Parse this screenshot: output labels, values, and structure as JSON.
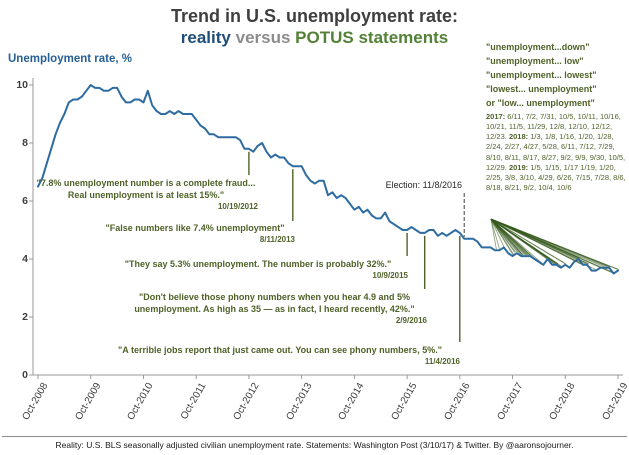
{
  "title": {
    "line1": "Trend in U.S. unemployment rate:",
    "reality": "reality",
    "versus": "versus",
    "potus": "POTUS statements"
  },
  "axis": {
    "y_label": "Unemployment rate, %",
    "y_ticks": [
      "10",
      "8",
      "6",
      "4",
      "2",
      "0"
    ],
    "x_ticks": [
      "Oct-2008",
      "Oct-2009",
      "Oct-2010",
      "Oct-2011",
      "Oct-2012",
      "Oct-2013",
      "Oct-2014",
      "Oct-2015",
      "Oct-2016",
      "Oct-2017",
      "Oct-2018",
      "Oct-2019"
    ]
  },
  "quotes": [
    {
      "text": "\"7.8% unemployment number is a complete fraud... Real unemployment is at least 15%.\"",
      "date": "10/19/2012",
      "month_index": 48
    },
    {
      "text": "\"False numbers like 7.4% unemployment\"",
      "date": "8/11/2013",
      "month_index": 58
    },
    {
      "text": "\"They say 5.3% unemployment. The number is probably 32%.\"",
      "date": "10/9/2015",
      "month_index": 84
    },
    {
      "text": "\"Don't believe those phony numbers when you hear 4.9 and 5% unemployment. As high as 35 — as in fact, I heard recently, 42%.\"",
      "date": "2/9/2016",
      "month_index": 88
    },
    {
      "text": "\"A terrible jobs report that just came out. You can see phony numbers, 5%.\"",
      "date": "11/4/2016",
      "month_index": 96
    }
  ],
  "election": {
    "label": "Election: 11/8/2016",
    "month_index": 97
  },
  "statements_box": {
    "lines": [
      "\"unemployment...down\"",
      "\"unemployment... low\"",
      "\"unemployment... lowest\"",
      "\"lowest... unemployment\"",
      "or \"low... unemployment\""
    ],
    "years": [
      {
        "year": "2017:",
        "dates": "6/11, 7/2, 7/31, 10/5, 10/11, 10/16, 10/21, 11/5, 11/29, 12/8, 12/10, 12/12, 12/23."
      },
      {
        "year": "2018:",
        "dates": "1/3, 1/8, 1/16, 1/20, 1/28, 2/24, 2/27, 4/27, 5/28, 6/11, 7/12, 7/29, 8/10, 8/11, 8/17, 8/27, 9/2, 9/9, 9/30, 10/5, 12/29."
      },
      {
        "year": "2019:",
        "dates": "1/5, 1/15, 1/17 1/19, 1/20, 2/25, 3/8, 3/10, 4/29, 6/26, 7/15, 7/28, 8/6, 8/18, 8/21, 9/2, 10/4, 10/6"
      }
    ]
  },
  "footer": "Reality: U.S. BLS seasonally adjusted civilian unemployment rate. Statements: Washington Post (3/10/17) & Twitter. By @aaronsojourner.",
  "chart_data": {
    "type": "line",
    "title": "Trend in U.S. unemployment rate: reality versus POTUS statements",
    "xlabel": "",
    "ylabel": "Unemployment rate, %",
    "ylim": [
      0,
      10
    ],
    "grid": false,
    "legend": "none",
    "x_start": "Oct-2008",
    "x_end": "Oct-2019",
    "frequency": "monthly",
    "categories": [
      "Oct-2008",
      "Oct-2009",
      "Oct-2010",
      "Oct-2011",
      "Oct-2012",
      "Oct-2013",
      "Oct-2014",
      "Oct-2015",
      "Oct-2016",
      "Oct-2017",
      "Oct-2018",
      "Oct-2019"
    ],
    "values": [
      6.5,
      6.8,
      7.3,
      7.8,
      8.3,
      8.7,
      9.0,
      9.4,
      9.5,
      9.5,
      9.6,
      9.8,
      10.0,
      9.9,
      9.9,
      9.8,
      9.8,
      9.9,
      9.9,
      9.6,
      9.4,
      9.4,
      9.5,
      9.5,
      9.4,
      9.8,
      9.3,
      9.1,
      9.0,
      9.0,
      9.1,
      9.0,
      9.1,
      9.0,
      9.0,
      9.0,
      8.8,
      8.6,
      8.5,
      8.3,
      8.3,
      8.2,
      8.2,
      8.2,
      8.2,
      8.2,
      8.1,
      7.8,
      7.8,
      7.7,
      7.9,
      8.0,
      7.7,
      7.5,
      7.6,
      7.5,
      7.5,
      7.3,
      7.2,
      7.2,
      7.2,
      6.9,
      6.7,
      6.6,
      6.7,
      6.7,
      6.2,
      6.3,
      6.1,
      6.2,
      6.1,
      5.9,
      5.7,
      5.8,
      5.6,
      5.7,
      5.5,
      5.4,
      5.4,
      5.6,
      5.3,
      5.2,
      5.1,
      5.0,
      5.0,
      5.1,
      5.0,
      4.9,
      4.9,
      5.0,
      5.0,
      4.8,
      4.9,
      4.8,
      4.9,
      5.0,
      4.9,
      4.7,
      4.7,
      4.7,
      4.6,
      4.4,
      4.4,
      4.4,
      4.3,
      4.3,
      4.4,
      4.2,
      4.1,
      4.2,
      4.1,
      4.1,
      4.1,
      4.0,
      3.9,
      3.8,
      4.0,
      3.8,
      3.8,
      3.7,
      3.8,
      3.7,
      3.9,
      4.0,
      3.8,
      3.8,
      3.6,
      3.6,
      3.7,
      3.7,
      3.7,
      3.5,
      3.6
    ],
    "colors": {
      "line": "#2d6ba0",
      "quote": "#4f6228",
      "fan": "#36591d",
      "axis": "#9a9a9a"
    }
  }
}
